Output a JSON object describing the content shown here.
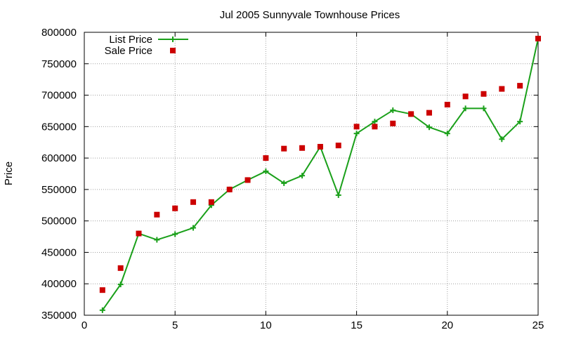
{
  "chart_data": {
    "type": "line",
    "title": "Jul 2005 Sunnyvale Townhouse Prices",
    "xlabel": "",
    "ylabel": "Price",
    "xlim": [
      0,
      25
    ],
    "ylim": [
      350000,
      800000
    ],
    "x_ticks": [
      0,
      5,
      10,
      15,
      20,
      25
    ],
    "y_ticks": [
      350000,
      400000,
      450000,
      500000,
      550000,
      600000,
      650000,
      700000,
      750000,
      800000
    ],
    "grid": true,
    "legend_position": "top-left",
    "x": [
      1,
      2,
      3,
      4,
      5,
      6,
      7,
      8,
      9,
      10,
      11,
      12,
      13,
      14,
      15,
      16,
      17,
      18,
      19,
      20,
      21,
      22,
      23,
      24,
      25
    ],
    "series": [
      {
        "name": "List Price",
        "style": "lines+points",
        "marker": "plus",
        "color": "#1aa01a",
        "values": [
          358000,
          399000,
          480000,
          470000,
          479000,
          489000,
          525000,
          550000,
          565000,
          579000,
          560000,
          572000,
          618000,
          541000,
          639000,
          658000,
          676000,
          670000,
          649000,
          639000,
          679000,
          679000,
          630000,
          658000,
          790000
        ]
      },
      {
        "name": "Sale Price",
        "style": "points",
        "marker": "square",
        "color": "#cc0000",
        "values": [
          390000,
          425000,
          480000,
          510000,
          520000,
          530000,
          530000,
          550000,
          565000,
          600000,
          615000,
          616000,
          618000,
          620000,
          650000,
          650000,
          655000,
          670000,
          672000,
          685000,
          698000,
          702000,
          710000,
          715000,
          790000
        ]
      }
    ]
  }
}
